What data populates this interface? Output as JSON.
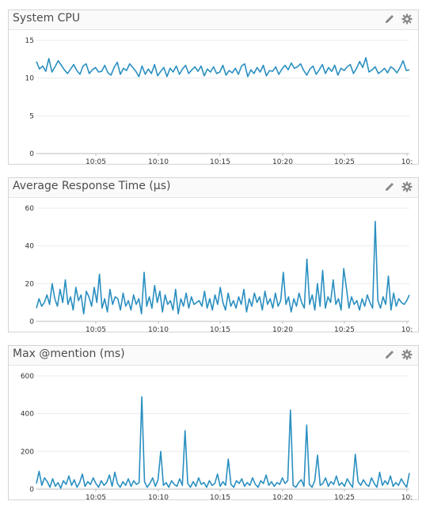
{
  "panels": [
    {
      "title": "System CPU",
      "icons": {
        "edit": "pencil-icon",
        "settings": "gear-icon"
      },
      "line_color": "#2a8fc0",
      "chart_data": {
        "type": "line",
        "title": "System CPU",
        "xlabel": "",
        "ylabel": "",
        "x_ticks": [
          "10:05",
          "10:10",
          "10:15",
          "10:20",
          "10:25",
          "10:"
        ],
        "y_ticks": [
          0,
          5,
          10,
          15
        ],
        "ylim": [
          0,
          15
        ],
        "grid": true,
        "series": [
          {
            "values": [
              12.2,
              11.2,
              11.6,
              10.9,
              12.6,
              10.8,
              11.5,
              12.3,
              11.7,
              11.1,
              10.6,
              11.2,
              11.8,
              11.0,
              10.5,
              11.6,
              11.9,
              10.6,
              11.1,
              11.4,
              10.8,
              10.9,
              11.7,
              10.7,
              10.4,
              11.4,
              12.1,
              10.5,
              11.3,
              11.0,
              11.9,
              11.4,
              10.9,
              10.2,
              11.6,
              10.5,
              11.2,
              10.6,
              11.8,
              10.3,
              10.9,
              11.4,
              10.2,
              11.3,
              10.8,
              11.6,
              10.5,
              11.2,
              11.7,
              10.6,
              11.1,
              11.5,
              10.9,
              11.6,
              10.3,
              11.2,
              10.8,
              11.5,
              10.6,
              10.8,
              11.7,
              10.4,
              11.0,
              10.7,
              11.3,
              10.5,
              11.6,
              11.9,
              10.2,
              11.1,
              10.6,
              11.4,
              10.8,
              11.7,
              10.3,
              11.0,
              10.9,
              11.5,
              10.5,
              11.2,
              11.7,
              11.1,
              12.0,
              11.3,
              11.5,
              11.9,
              11.0,
              10.4,
              11.2,
              11.6,
              10.5,
              11.1,
              11.8,
              10.6,
              11.4,
              10.9,
              11.7,
              10.4,
              11.3,
              11.0,
              11.5,
              11.8,
              10.6,
              11.3,
              12.2,
              11.4,
              12.7,
              10.8,
              11.1,
              11.5,
              10.6,
              10.9,
              11.3,
              10.7,
              11.5,
              11.2,
              10.7,
              11.4,
              12.3,
              11.0,
              11.1
            ]
          }
        ]
      }
    },
    {
      "title": "Average Response Time (µs)",
      "icons": {
        "edit": "pencil-icon",
        "settings": "gear-icon"
      },
      "line_color": "#2a8fc0",
      "chart_data": {
        "type": "line",
        "title": "Average Response Time (µs)",
        "xlabel": "",
        "ylabel": "",
        "x_ticks": [
          "10:05",
          "10:10",
          "10:15",
          "10:20",
          "10:25",
          "10:"
        ],
        "y_ticks": [
          0,
          20,
          40,
          60
        ],
        "ylim": [
          0,
          60
        ],
        "grid": true,
        "series": [
          {
            "values": [
              7,
              12,
              8,
              10,
              14,
              9,
              20,
              12,
              8,
              17,
              10,
              22,
              9,
              13,
              6,
              18,
              11,
              14,
              4,
              16,
              13,
              8,
              18,
              10,
              25,
              7,
              12,
              5,
              17,
              9,
              13,
              12,
              6,
              15,
              8,
              11,
              6,
              14,
              9,
              12,
              4,
              26,
              8,
              13,
              7,
              19,
              10,
              16,
              5,
              14,
              9,
              11,
              6,
              17,
              4,
              12,
              8,
              15,
              7,
              13,
              9,
              10,
              11,
              8,
              16,
              7,
              12,
              6,
              14,
              9,
              18,
              10,
              6,
              15,
              8,
              11,
              7,
              13,
              9,
              17,
              5,
              12,
              8,
              15,
              10,
              13,
              6,
              16,
              9,
              12,
              7,
              15,
              8,
              11,
              26,
              9,
              13,
              5,
              12,
              8,
              15,
              10,
              7,
              33,
              9,
              14,
              6,
              20,
              8,
              27,
              7,
              13,
              10,
              22,
              9,
              12,
              6,
              28,
              18,
              7,
              13,
              9,
              11,
              6,
              12,
              8,
              14,
              10,
              7,
              53,
              11,
              7,
              13,
              9,
              24,
              6,
              15,
              8,
              12,
              10,
              9,
              11,
              14
            ]
          }
        ]
      }
    },
    {
      "title": "Max @mention (ms)",
      "icons": {
        "edit": "pencil-icon",
        "settings": "gear-icon"
      },
      "line_color": "#2a8fc0",
      "chart_data": {
        "type": "line",
        "title": "Max @mention (ms)",
        "xlabel": "",
        "ylabel": "",
        "x_ticks": [
          "10:05",
          "10:10",
          "10:15",
          "10:20",
          "10:25",
          "10:"
        ],
        "y_ticks": [
          0,
          200,
          400,
          600
        ],
        "ylim": [
          0,
          600
        ],
        "grid": true,
        "series": [
          {
            "values": [
              30,
              95,
              20,
              60,
              40,
              10,
              55,
              15,
              35,
              5,
              45,
              25,
              70,
              20,
              50,
              10,
              35,
              80,
              15,
              40,
              25,
              60,
              30,
              10,
              45,
              20,
              35,
              75,
              15,
              90,
              30,
              10,
              40,
              20,
              55,
              15,
              45,
              25,
              35,
              490,
              40,
              10,
              30,
              60,
              15,
              50,
              200,
              20,
              35,
              10,
              45,
              25,
              15,
              55,
              20,
              310,
              30,
              10,
              40,
              15,
              60,
              25,
              35,
              10,
              45,
              20,
              30,
              80,
              15,
              40,
              20,
              160,
              25,
              10,
              45,
              30,
              55,
              15,
              35,
              20,
              60,
              25,
              10,
              45,
              30,
              75,
              20,
              40,
              15,
              35,
              25,
              60,
              30,
              45,
              420,
              20,
              10,
              35,
              50,
              15,
              340,
              25,
              10,
              45,
              180,
              20,
              30,
              60,
              15,
              40,
              25,
              70,
              20,
              35,
              15,
              55,
              30,
              10,
              185,
              40,
              20,
              50,
              25,
              15,
              60,
              30,
              10,
              90,
              20,
              45,
              25,
              70,
              15,
              35,
              20,
              55,
              30,
              10,
              85
            ]
          }
        ]
      }
    }
  ]
}
